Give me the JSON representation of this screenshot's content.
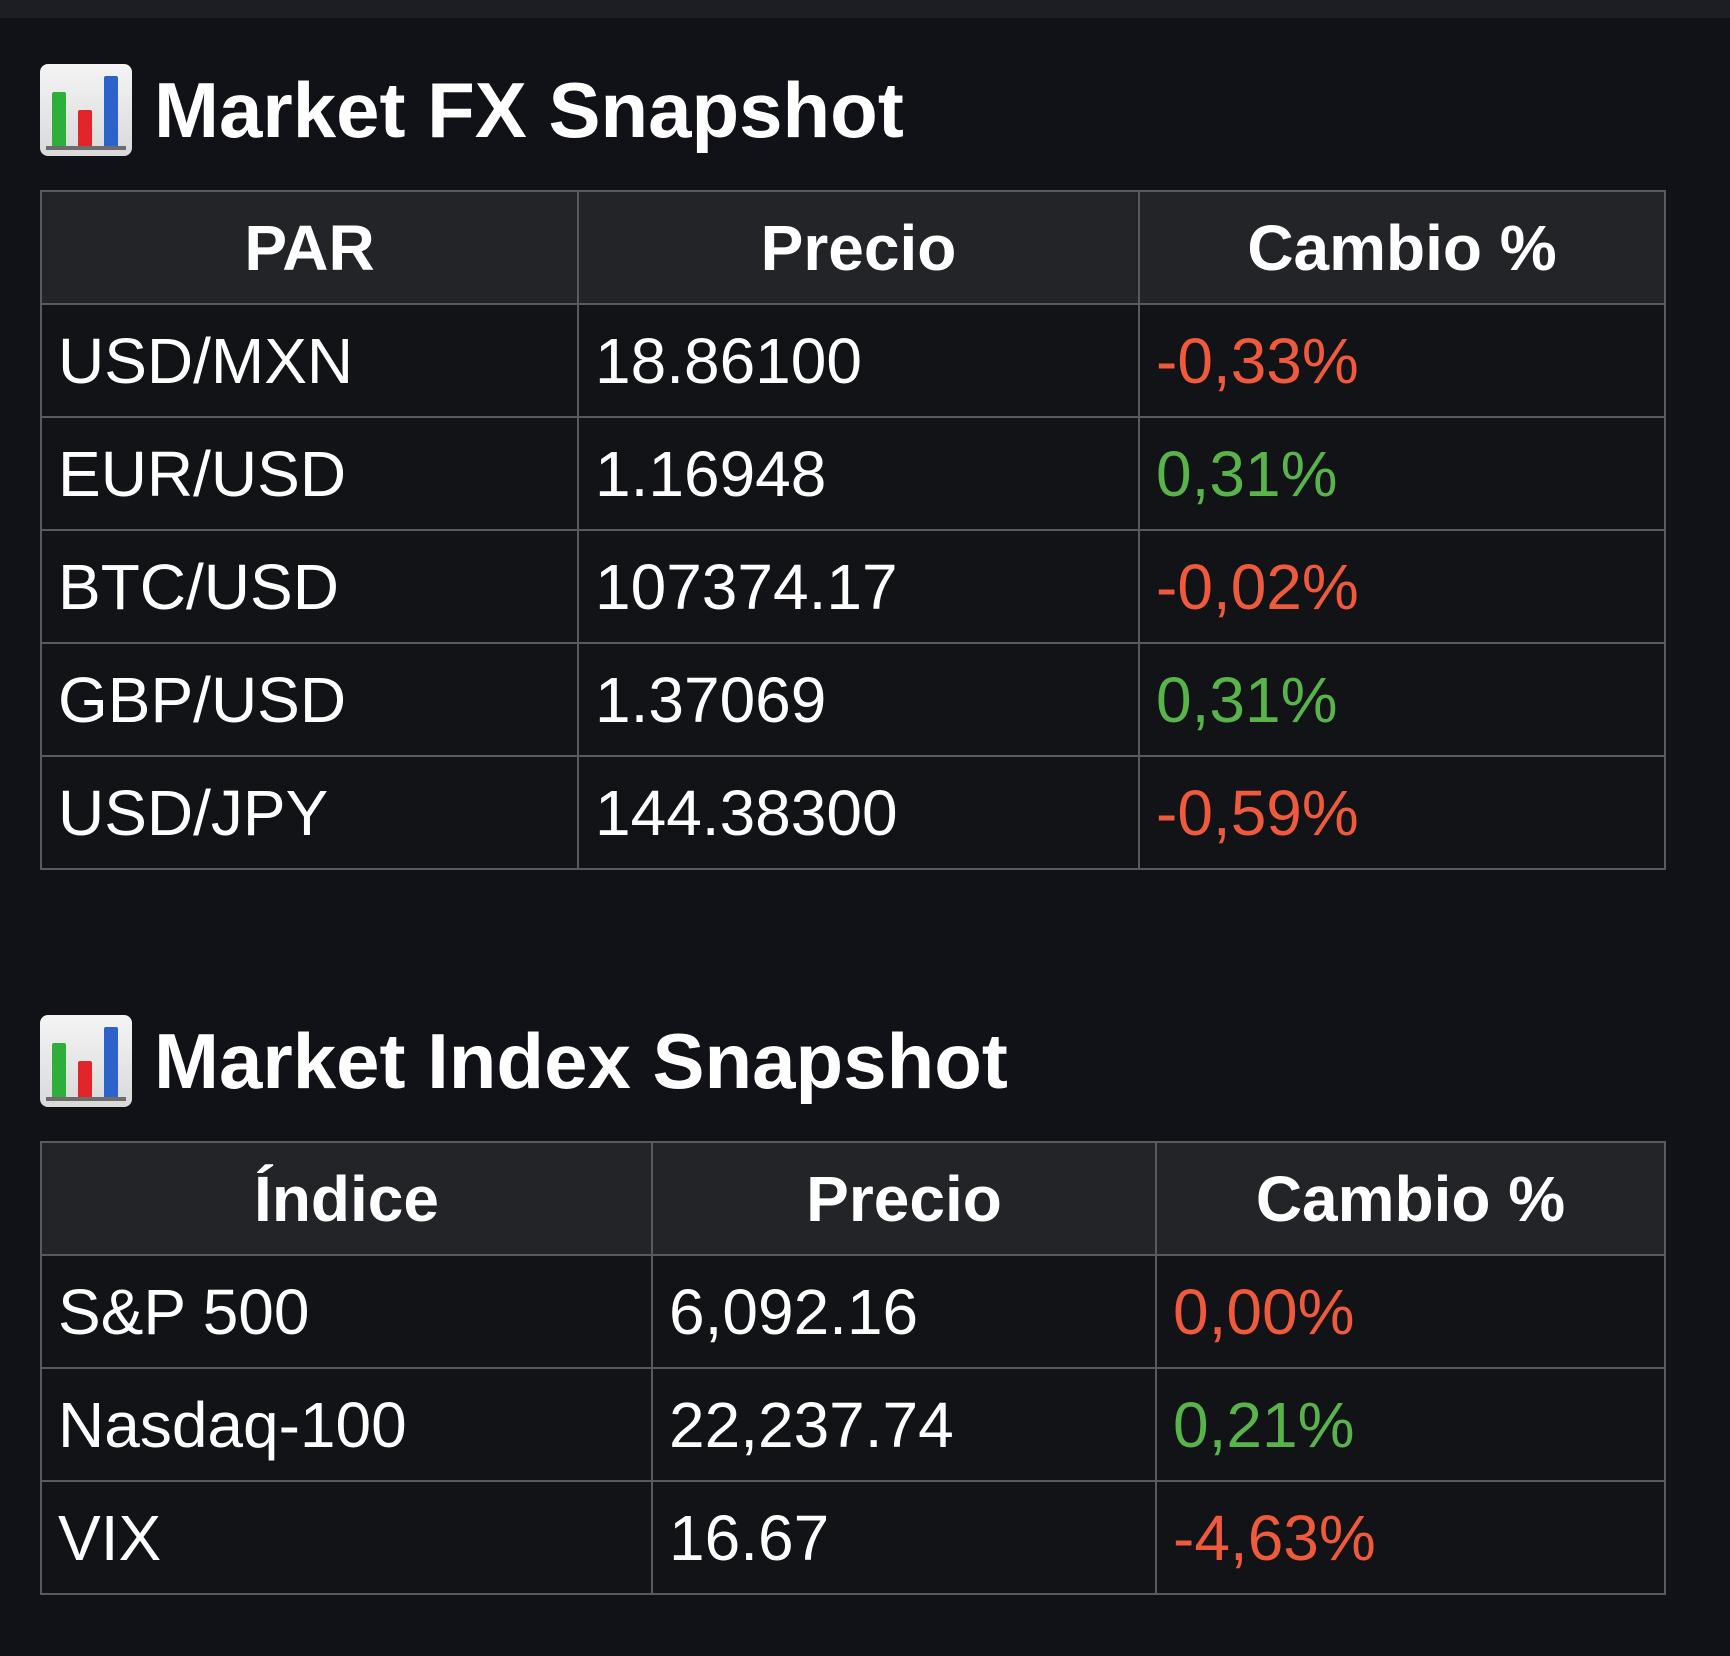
{
  "fx": {
    "title": "Market FX Snapshot",
    "icon": "bar-chart-icon",
    "headers": [
      "PAR",
      "Precio",
      "Cambio %"
    ],
    "rows": [
      {
        "pair": "USD/MXN",
        "price": "18.86100",
        "change": "-0,33%",
        "trend": "down"
      },
      {
        "pair": "EUR/USD",
        "price": "1.16948",
        "change": "0,31%",
        "trend": "up"
      },
      {
        "pair": "BTC/USD",
        "price": "107374.17",
        "change": "-0,02%",
        "trend": "down"
      },
      {
        "pair": "GBP/USD",
        "price": "1.37069",
        "change": "0,31%",
        "trend": "up"
      },
      {
        "pair": "USD/JPY",
        "price": "144.38300",
        "change": "-0,59%",
        "trend": "down"
      }
    ]
  },
  "index": {
    "title": "Market Index Snapshot",
    "icon": "bar-chart-icon",
    "headers": [
      "Índice",
      "Precio",
      "Cambio %"
    ],
    "rows": [
      {
        "name": "S&P 500",
        "price": "6,092.16",
        "change": "0,00%",
        "trend": "down"
      },
      {
        "name": "Nasdaq-100",
        "price": "22,237.74",
        "change": "0,21%",
        "trend": "up"
      },
      {
        "name": "VIX",
        "price": "16.67",
        "change": "-4,63%",
        "trend": "down"
      }
    ]
  },
  "colors": {
    "background": "#111217",
    "header_bg": "#232427",
    "border": "#5a5a5e",
    "negative": "#ef5a3c",
    "positive": "#58b44a"
  }
}
